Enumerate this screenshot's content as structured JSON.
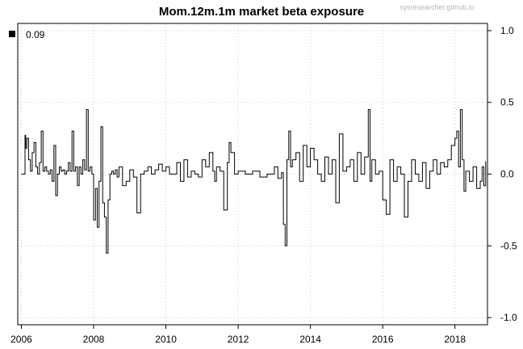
{
  "chart_data": {
    "type": "line",
    "title": "Mom.12m.1m market beta exposure",
    "watermark": "sysresearcher.github.io",
    "xlabel": "",
    "ylabel": "",
    "xlim": [
      2005.9,
      2018.9
    ],
    "ylim": [
      -1.05,
      1.05
    ],
    "x_ticks": [
      "2006",
      "2008",
      "2010",
      "2012",
      "2014",
      "2016",
      "2018"
    ],
    "y_ticks": [
      "1.0",
      "0.5",
      "0.0",
      "-0.5",
      "-1.0"
    ],
    "grid": true,
    "y_axis_side": "right",
    "legend": {
      "position": "top-left",
      "entries": [
        {
          "label": "0.09",
          "color": "#000000"
        }
      ]
    },
    "series": [
      {
        "color": "#000000",
        "x": [
          2006.0,
          2006.05,
          2006.1,
          2006.12,
          2006.15,
          2006.2,
          2006.25,
          2006.3,
          2006.35,
          2006.4,
          2006.45,
          2006.5,
          2006.55,
          2006.6,
          2006.65,
          2006.7,
          2006.75,
          2006.8,
          2006.85,
          2006.9,
          2006.95,
          2007.0,
          2007.05,
          2007.1,
          2007.15,
          2007.2,
          2007.25,
          2007.3,
          2007.35,
          2007.4,
          2007.45,
          2007.5,
          2007.55,
          2007.6,
          2007.65,
          2007.7,
          2007.75,
          2007.8,
          2007.85,
          2007.9,
          2007.95,
          2008.0,
          2008.05,
          2008.1,
          2008.15,
          2008.2,
          2008.25,
          2008.3,
          2008.35,
          2008.4,
          2008.45,
          2008.5,
          2008.55,
          2008.6,
          2008.65,
          2008.7,
          2008.8,
          2008.9,
          2009.0,
          2009.1,
          2009.2,
          2009.3,
          2009.4,
          2009.5,
          2009.6,
          2009.7,
          2009.8,
          2009.9,
          2010.0,
          2010.1,
          2010.2,
          2010.3,
          2010.4,
          2010.5,
          2010.6,
          2010.7,
          2010.8,
          2010.9,
          2011.0,
          2011.1,
          2011.2,
          2011.3,
          2011.35,
          2011.4,
          2011.5,
          2011.6,
          2011.7,
          2011.75,
          2011.8,
          2011.9,
          2012.0,
          2012.2,
          2012.4,
          2012.6,
          2012.8,
          2013.0,
          2013.1,
          2013.2,
          2013.25,
          2013.3,
          2013.35,
          2013.4,
          2013.45,
          2013.5,
          2013.6,
          2013.7,
          2013.8,
          2013.9,
          2014.0,
          2014.1,
          2014.2,
          2014.3,
          2014.4,
          2014.5,
          2014.6,
          2014.7,
          2014.8,
          2014.9,
          2015.0,
          2015.1,
          2015.2,
          2015.3,
          2015.4,
          2015.5,
          2015.6,
          2015.65,
          2015.7,
          2015.8,
          2015.9,
          2016.0,
          2016.1,
          2016.2,
          2016.3,
          2016.4,
          2016.5,
          2016.6,
          2016.7,
          2016.8,
          2016.9,
          2017.0,
          2017.1,
          2017.2,
          2017.3,
          2017.4,
          2017.5,
          2017.6,
          2017.7,
          2017.8,
          2017.9,
          2018.0,
          2018.05,
          2018.1,
          2018.15,
          2018.2,
          2018.25,
          2018.3,
          2018.4,
          2018.5,
          2018.6,
          2018.7,
          2018.75,
          2018.8,
          2018.85
        ],
        "y": [
          0.0,
          0.0,
          0.27,
          0.18,
          0.25,
          0.1,
          0.02,
          0.15,
          0.22,
          0.05,
          0.0,
          0.08,
          0.3,
          0.02,
          0.05,
          0.02,
          0.0,
          0.03,
          -0.05,
          0.2,
          -0.15,
          0.0,
          0.05,
          0.02,
          0.03,
          0.0,
          0.02,
          0.08,
          0.02,
          0.3,
          0.02,
          0.05,
          -0.08,
          0.05,
          0.0,
          0.1,
          0.03,
          0.45,
          0.02,
          0.05,
          0.0,
          -0.32,
          -0.1,
          -0.37,
          -0.05,
          0.33,
          -0.2,
          -0.3,
          -0.55,
          -0.18,
          0.0,
          0.02,
          0.0,
          0.03,
          -0.02,
          0.05,
          -0.08,
          -0.05,
          0.03,
          -0.02,
          -0.27,
          0.0,
          0.02,
          0.05,
          0.0,
          0.03,
          0.07,
          0.02,
          0.05,
          0.0,
          0.0,
          0.08,
          -0.05,
          0.1,
          -0.02,
          0.02,
          0.0,
          -0.02,
          0.1,
          0.05,
          0.15,
          0.02,
          -0.05,
          0.05,
          0.02,
          -0.25,
          0.08,
          0.22,
          0.15,
          0.0,
          0.02,
          0.0,
          0.02,
          -0.02,
          0.0,
          0.05,
          -0.03,
          0.01,
          -0.35,
          -0.5,
          0.1,
          0.3,
          0.05,
          0.1,
          0.15,
          -0.05,
          0.2,
          0.05,
          0.18,
          0.1,
          0.0,
          -0.05,
          0.12,
          0.0,
          0.1,
          -0.2,
          0.28,
          0.02,
          0.05,
          0.1,
          -0.05,
          0.15,
          0.0,
          0.12,
          0.45,
          -0.05,
          0.1,
          0.0,
          0.02,
          -0.18,
          -0.28,
          0.1,
          -0.05,
          0.05,
          0.0,
          -0.3,
          -0.05,
          0.1,
          0.0,
          -0.05,
          0.08,
          -0.1,
          0.02,
          0.1,
          0.0,
          0.08,
          0.05,
          0.1,
          0.2,
          0.25,
          0.3,
          0.05,
          0.45,
          0.1,
          -0.12,
          0.02,
          -0.05,
          0.05,
          -0.1,
          -0.05,
          0.05,
          -0.08,
          0.09
        ]
      }
    ]
  }
}
